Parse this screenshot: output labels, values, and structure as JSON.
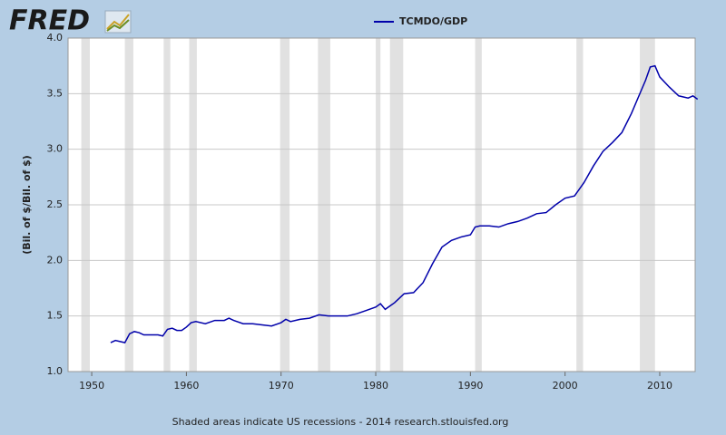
{
  "chart_data": {
    "type": "line",
    "logo": "FRED",
    "ylabel": "(Bil. of $/Bil. of $)",
    "note": "Shaded areas indicate US recessions - 2014 research.stlouisfed.org",
    "xlim": [
      1947.5,
      2013.74
    ],
    "xticks": [
      1950,
      1960,
      1970,
      1980,
      1990,
      2000,
      2010
    ],
    "ylim": [
      1,
      4
    ],
    "yticks": [
      {
        "value": 1,
        "label": "1.0"
      },
      1.5,
      {
        "value": 2,
        "label": "2.0"
      },
      2.5,
      {
        "value": 3,
        "label": "3.0"
      },
      3.5,
      {
        "value": 4,
        "label": "4.0"
      }
    ],
    "grid": true,
    "recessions": [
      [
        1948.9,
        1949.8
      ],
      [
        1953.5,
        1954.4
      ],
      [
        1957.6,
        1958.3
      ],
      [
        1960.3,
        1961.1
      ],
      [
        1969.9,
        1970.9
      ],
      [
        1973.9,
        1975.2
      ],
      [
        1980.0,
        1980.5
      ],
      [
        1981.5,
        1982.9
      ],
      [
        1990.5,
        1991.2
      ],
      [
        2001.2,
        2001.9
      ],
      [
        2007.9,
        2009.5
      ]
    ],
    "recession_color": "#e1e1e1",
    "x": [
      1952.0,
      1952.5,
      1953.0,
      1953.5,
      1954.0,
      1954.5,
      1955.0,
      1955.5,
      1956.0,
      1957.0,
      1957.5,
      1958.0,
      1958.5,
      1959.0,
      1959.5,
      1960.0,
      1960.5,
      1961.0,
      1962.0,
      1963.0,
      1964.0,
      1964.5,
      1965.0,
      1966.0,
      1967.0,
      1968.0,
      1969.0,
      1970.0,
      1970.5,
      1971.0,
      1972.0,
      1973.0,
      1974.0,
      1975.0,
      1976.0,
      1977.0,
      1978.0,
      1979.0,
      1980.0,
      1980.5,
      1981.0,
      1981.5,
      1982.0,
      1983.0,
      1984.0,
      1985.0,
      1986.0,
      1987.0,
      1988.0,
      1989.0,
      1990.0,
      1990.5,
      1991.0,
      1992.0,
      1993.0,
      1994.0,
      1995.0,
      1996.0,
      1997.0,
      1998.0,
      1999.0,
      2000.0,
      2001.0,
      2002.0,
      2003.0,
      2004.0,
      2005.0,
      2006.0,
      2007.0,
      2008.0,
      2008.5,
      2009.0,
      2009.5,
      2010.0,
      2011.0,
      2012.0,
      2013.0,
      2013.5,
      2014.0
    ],
    "series": [
      {
        "name": "TCMDO/GDP",
        "color": "#0000aa",
        "values": [
          1.26,
          1.28,
          1.27,
          1.26,
          1.34,
          1.36,
          1.35,
          1.33,
          1.33,
          1.33,
          1.32,
          1.38,
          1.39,
          1.37,
          1.37,
          1.4,
          1.44,
          1.45,
          1.43,
          1.46,
          1.46,
          1.48,
          1.46,
          1.43,
          1.43,
          1.42,
          1.41,
          1.44,
          1.47,
          1.45,
          1.47,
          1.48,
          1.51,
          1.5,
          1.5,
          1.5,
          1.52,
          1.55,
          1.58,
          1.61,
          1.56,
          1.59,
          1.62,
          1.7,
          1.71,
          1.8,
          1.97,
          2.12,
          2.18,
          2.21,
          2.23,
          2.3,
          2.31,
          2.31,
          2.3,
          2.33,
          2.35,
          2.38,
          2.42,
          2.43,
          2.5,
          2.56,
          2.58,
          2.7,
          2.85,
          2.98,
          3.06,
          3.15,
          3.32,
          3.52,
          3.62,
          3.74,
          3.75,
          3.65,
          3.56,
          3.48,
          3.46,
          3.48,
          3.45
        ]
      }
    ]
  }
}
